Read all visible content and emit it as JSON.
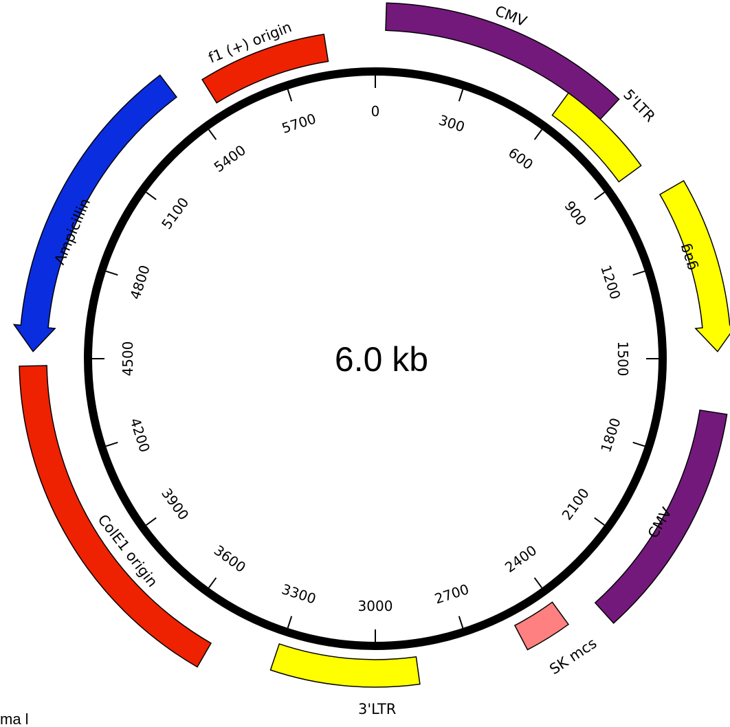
{
  "plasmid": {
    "size_label": "6.0 kb",
    "total_bp": 6000,
    "corner_text": "ma l",
    "ticks": [
      0,
      300,
      600,
      900,
      1200,
      1500,
      1800,
      2100,
      2400,
      2700,
      3000,
      3300,
      3600,
      3900,
      4200,
      4500,
      4800,
      5100,
      5400,
      5700
    ],
    "features": [
      {
        "id": "cmv-1",
        "name": "CMV",
        "start": 30,
        "end": 720,
        "color": "#74197c",
        "ring": "outer",
        "arrow": "none"
      },
      {
        "id": "ltr-5",
        "name": "5'LTR",
        "start": 600,
        "end": 900,
        "color": "#ffff00",
        "ring": "inner",
        "arrow": "none"
      },
      {
        "id": "gag",
        "name": "gag",
        "start": 1000,
        "end": 1480,
        "color": "#ffff00",
        "ring": "outer",
        "arrow": "forward"
      },
      {
        "id": "cmv-2",
        "name": "CMV",
        "start": 1650,
        "end": 2300,
        "color": "#74197c",
        "ring": "outer",
        "arrow": "none"
      },
      {
        "id": "sk-mcs",
        "name": "SK mcs",
        "start": 2400,
        "end": 2540,
        "color": "#ff8080",
        "ring": "inner",
        "arrow": "none"
      },
      {
        "id": "ltr-3",
        "name": "3'LTR",
        "start": 2870,
        "end": 3310,
        "color": "#ffff00",
        "ring": "inner",
        "arrow": "none"
      },
      {
        "id": "cole1",
        "name": "ColE1 origin",
        "start": 3500,
        "end": 4480,
        "color": "#ee2200",
        "ring": "outer",
        "arrow": "none"
      },
      {
        "id": "amp",
        "name": "Ampicillin",
        "start": 4520,
        "end": 5380,
        "color": "#0b2de0",
        "ring": "outer",
        "arrow": "reverse"
      },
      {
        "id": "f1",
        "name": "f1 (+) origin",
        "start": 5470,
        "end": 5850,
        "color": "#ee2200",
        "ring": "inner",
        "arrow": "none"
      }
    ]
  }
}
